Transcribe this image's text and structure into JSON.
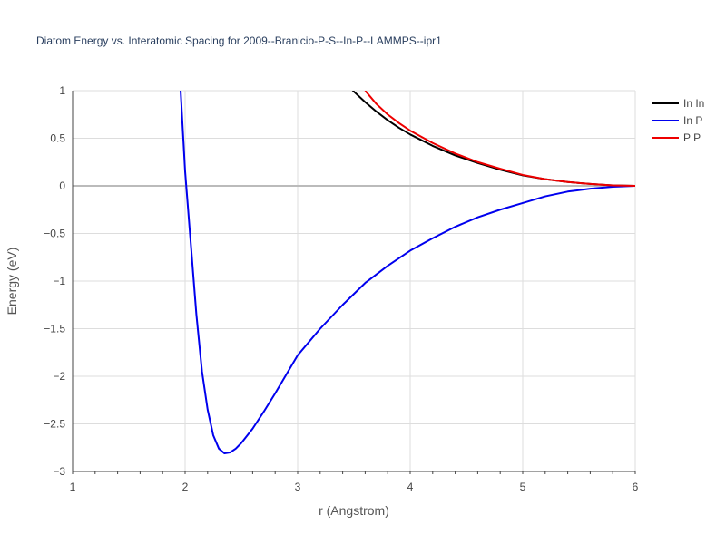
{
  "chart_data": {
    "type": "line",
    "title": "Diatom Energy vs. Interatomic Spacing for 2009--Branicio-P-S--In-P--LAMMPS--ipr1",
    "xlabel": "r (Angstrom)",
    "ylabel": "Energy (eV)",
    "xlim": [
      1,
      6
    ],
    "ylim": [
      -3,
      1
    ],
    "xticks": [
      1,
      2,
      3,
      4,
      5,
      6
    ],
    "yticks": [
      1,
      0.5,
      0,
      -0.5,
      -1,
      -1.5,
      -2,
      -2.5,
      -3
    ],
    "ytick_labels": [
      "1",
      "0.5",
      "0",
      "−0.5",
      "−1",
      "−1.5",
      "−2",
      "−2.5",
      "−3"
    ],
    "grid": true,
    "legend_position": "top-right",
    "series": [
      {
        "name": "In In",
        "color": "#000000",
        "x": [
          3.4,
          3.5,
          3.6,
          3.7,
          3.8,
          3.9,
          4.0,
          4.2,
          4.4,
          4.6,
          4.8,
          5.0,
          5.2,
          5.4,
          5.6,
          5.8,
          6.0
        ],
        "y": [
          1.12,
          0.99,
          0.88,
          0.78,
          0.69,
          0.61,
          0.54,
          0.42,
          0.32,
          0.24,
          0.17,
          0.11,
          0.07,
          0.04,
          0.02,
          0.005,
          0.0
        ]
      },
      {
        "name": "In P",
        "color": "#0000ee",
        "x": [
          1.96,
          2.0,
          2.05,
          2.1,
          2.15,
          2.2,
          2.25,
          2.3,
          2.35,
          2.4,
          2.45,
          2.5,
          2.6,
          2.7,
          2.8,
          2.9,
          3.0,
          3.2,
          3.4,
          3.6,
          3.8,
          4.0,
          4.2,
          4.4,
          4.6,
          4.8,
          5.0,
          5.2,
          5.4,
          5.6,
          5.8,
          6.0
        ],
        "y": [
          1.0,
          0.15,
          -0.6,
          -1.35,
          -1.95,
          -2.35,
          -2.62,
          -2.76,
          -2.81,
          -2.8,
          -2.76,
          -2.7,
          -2.55,
          -2.37,
          -2.18,
          -1.98,
          -1.78,
          -1.5,
          -1.25,
          -1.02,
          -0.84,
          -0.68,
          -0.55,
          -0.43,
          -0.33,
          -0.25,
          -0.18,
          -0.11,
          -0.06,
          -0.03,
          -0.01,
          0.0
        ]
      },
      {
        "name": "P P",
        "color": "#ee0000",
        "x": [
          3.6,
          3.7,
          3.8,
          3.9,
          4.0,
          4.2,
          4.4,
          4.6,
          4.8,
          5.0,
          5.2,
          5.4,
          5.6,
          5.8,
          6.0
        ],
        "y": [
          1.0,
          0.86,
          0.75,
          0.66,
          0.58,
          0.45,
          0.34,
          0.25,
          0.18,
          0.115,
          0.07,
          0.04,
          0.02,
          0.005,
          0.0
        ]
      }
    ]
  }
}
